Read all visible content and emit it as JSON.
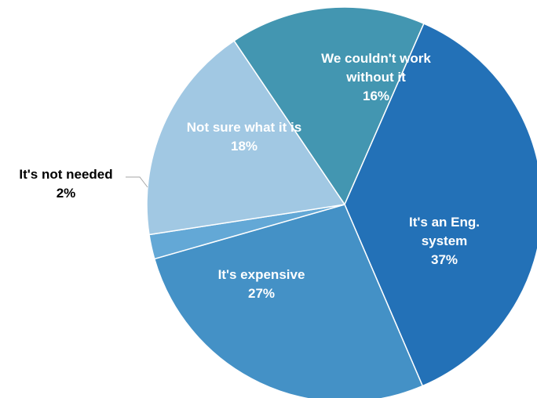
{
  "chart_data": {
    "type": "pie",
    "slices": [
      {
        "category": "We couldn't work without it",
        "label_lines": [
          "We couldn't work",
          "without it"
        ],
        "value_label": "16%",
        "value": 16,
        "color": "#4396b1"
      },
      {
        "category": "It's an Eng. system",
        "label_lines": [
          "It's an Eng.",
          "system"
        ],
        "value_label": "37%",
        "value": 37,
        "color": "#2371b7"
      },
      {
        "category": "It's expensive",
        "label_lines": [
          "It's expensive"
        ],
        "value_label": "27%",
        "value": 27,
        "color": "#4491c6"
      },
      {
        "category": "It's not needed",
        "label_lines": [
          "It's not needed"
        ],
        "value_label": "2%",
        "value": 2,
        "color": "#63a8d6"
      },
      {
        "category": "Not sure what it is",
        "label_lines": [
          "Not sure what it is"
        ],
        "value_label": "18%",
        "value": 18,
        "color": "#a1c8e3"
      }
    ],
    "legend": "none"
  }
}
